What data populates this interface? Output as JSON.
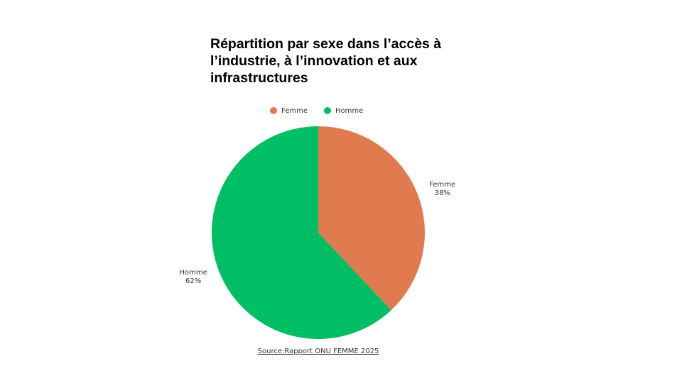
{
  "chart_data": {
    "type": "pie",
    "title": "Répartition par sexe dans l’accès à l’industrie, à l’innovation et aux infrastructures",
    "categories": [
      "Femme",
      "Homme"
    ],
    "values": [
      38,
      62
    ],
    "value_labels": [
      "38%",
      "62%"
    ],
    "colors": [
      "#e07b4f",
      "#00be64"
    ],
    "source": "Source:Rapport ONU FEMME 2025"
  }
}
